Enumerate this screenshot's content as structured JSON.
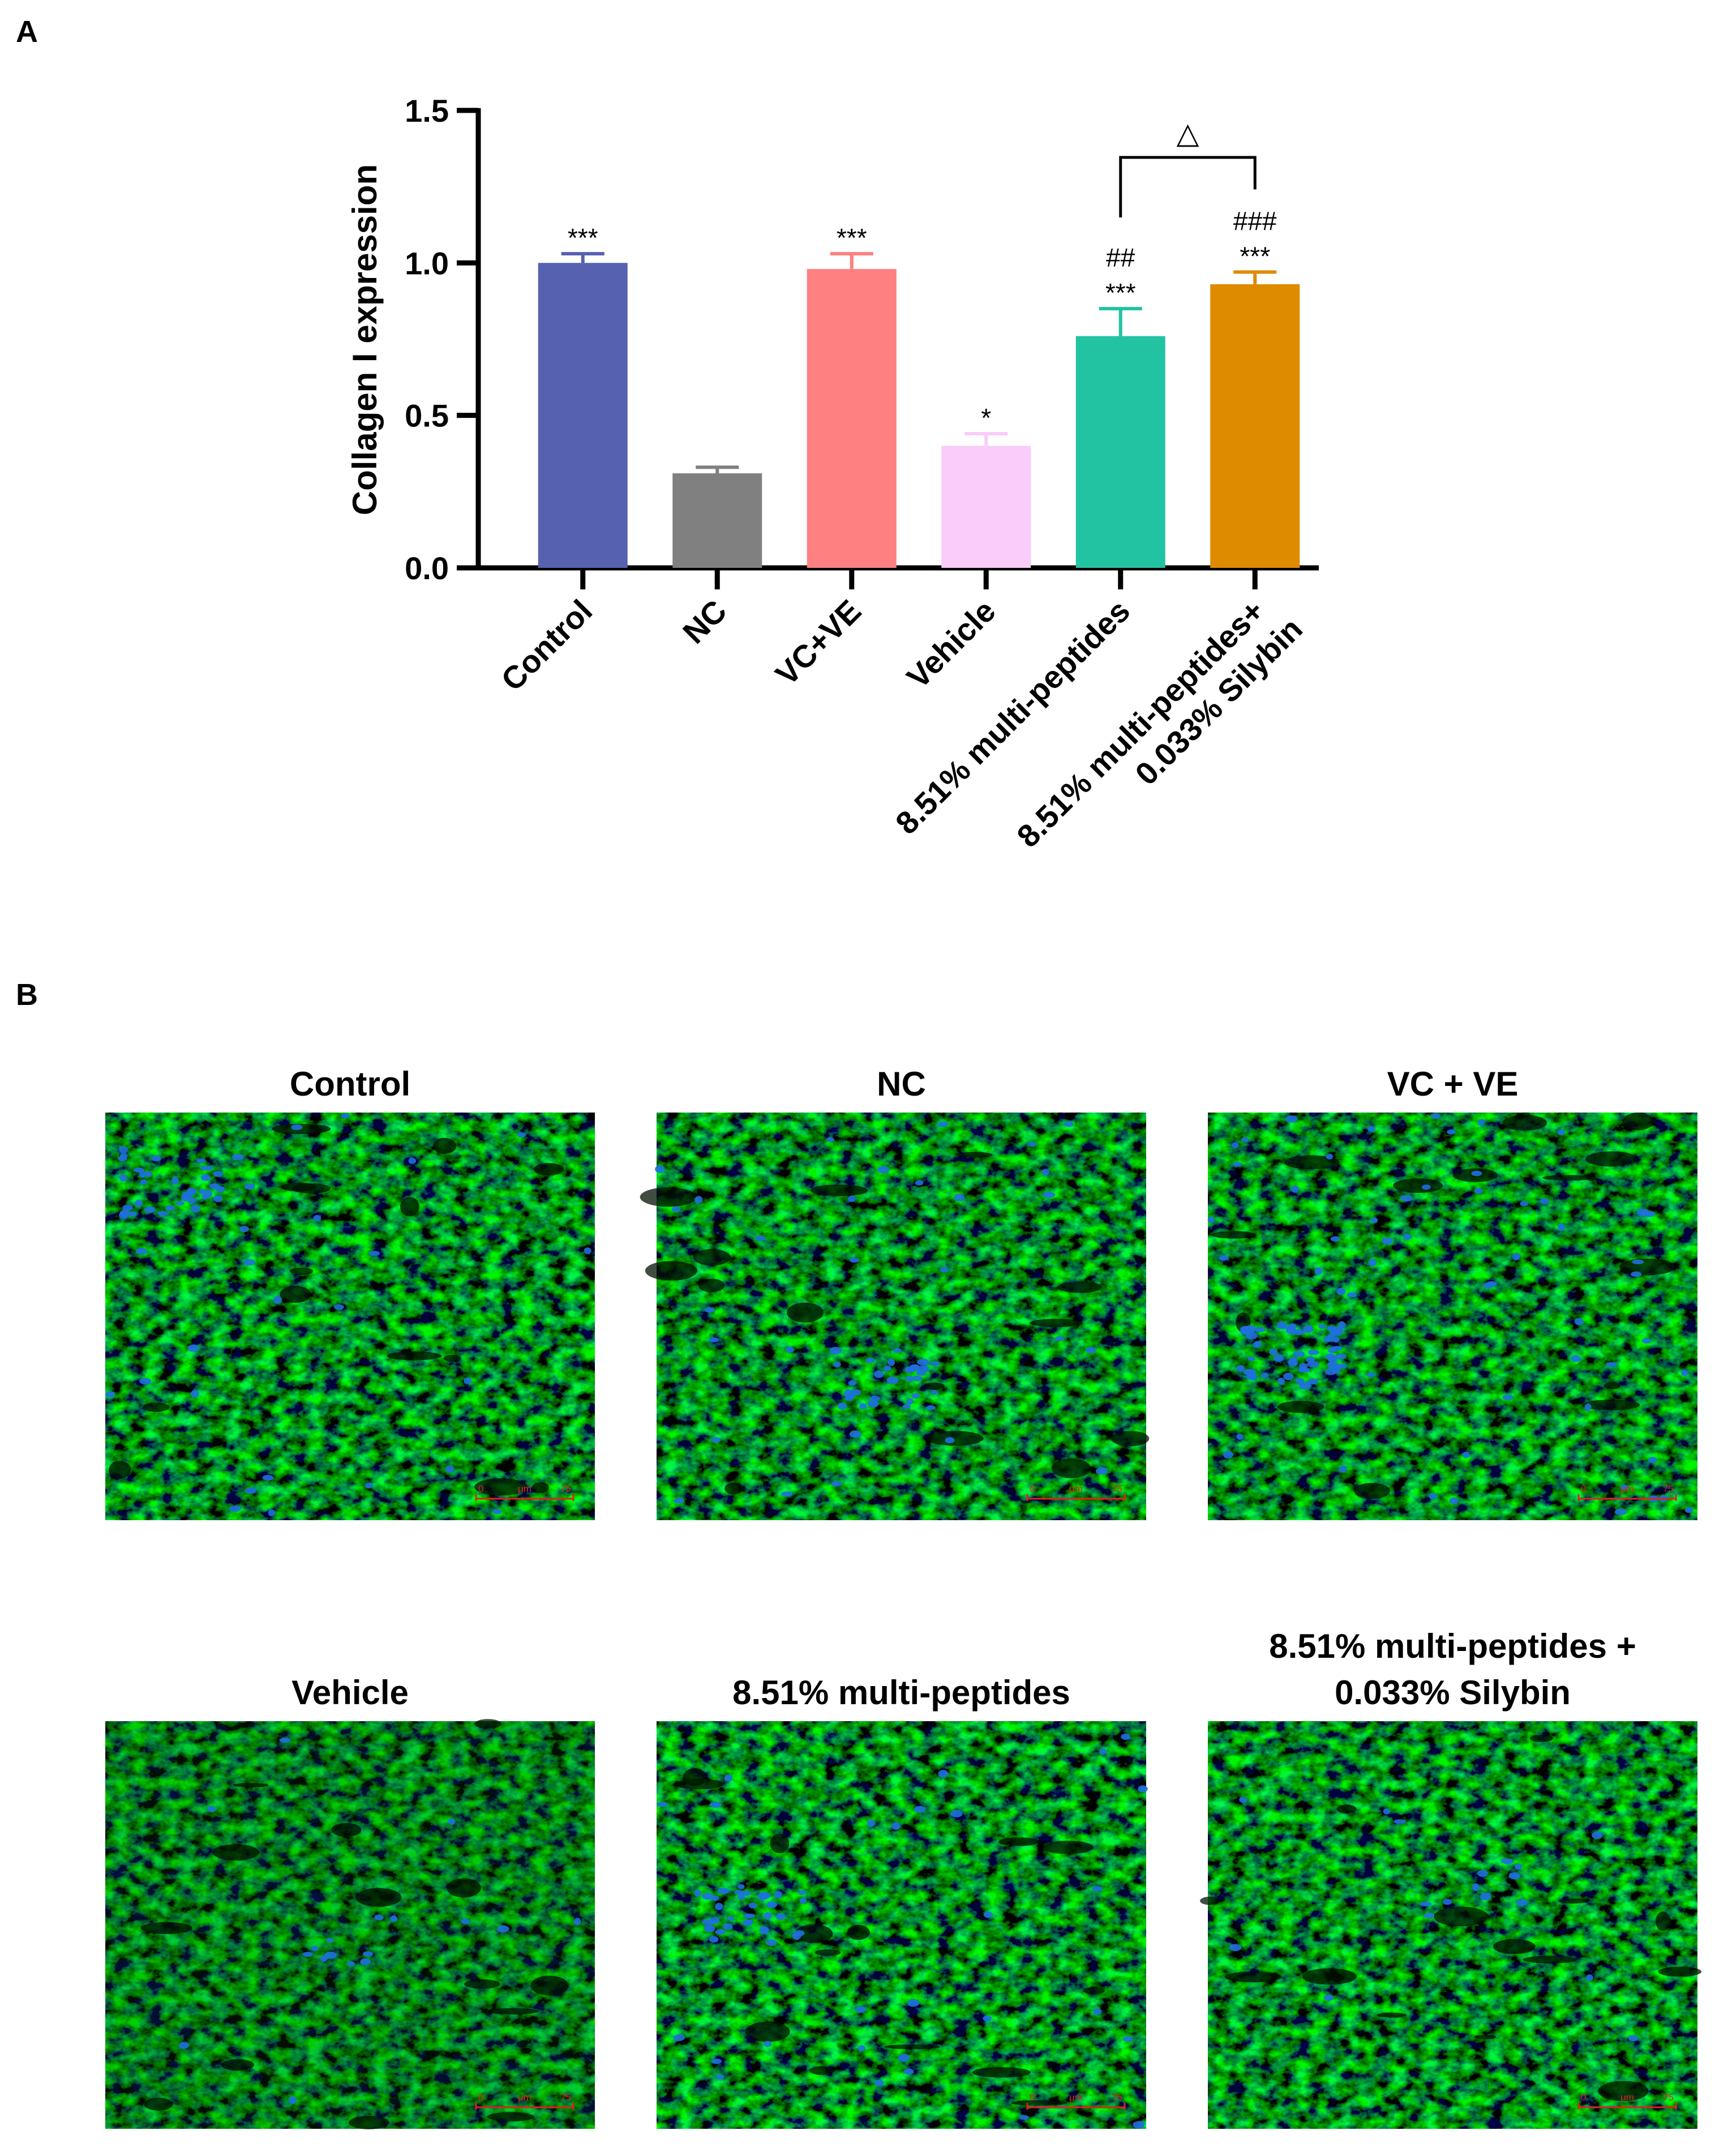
{
  "panel_a": {
    "label": "A"
  },
  "panel_b": {
    "label": "B",
    "images": [
      {
        "title_lines": [
          "Control"
        ],
        "scale_bar": {
          "start": "0",
          "unit": "μm",
          "end": "75"
        },
        "nuclei": "moderate"
      },
      {
        "title_lines": [
          "NC"
        ],
        "scale_bar": {
          "start": "0",
          "unit": "μm",
          "end": "75"
        },
        "nuclei": "moderate"
      },
      {
        "title_lines": [
          "VC + VE"
        ],
        "scale_bar": {
          "start": "0",
          "unit": "μm",
          "end": "75"
        },
        "nuclei": "many"
      },
      {
        "title_lines": [
          "Vehicle"
        ],
        "scale_bar": {
          "start": "0",
          "unit": "μm",
          "end": "75"
        },
        "nuclei": "few"
      },
      {
        "title_lines": [
          "8.51% multi-peptides"
        ],
        "scale_bar": {
          "start": "0",
          "unit": "μm",
          "end": "75"
        },
        "nuclei": "moderate"
      },
      {
        "title_lines": [
          "8.51% multi-peptides +",
          "0.033% Silybin"
        ],
        "scale_bar": {
          "start": "0",
          "unit": "μm",
          "end": "75"
        },
        "nuclei": "few"
      }
    ]
  },
  "chart_data": {
    "type": "bar",
    "ylabel": "Collagen I expression",
    "ylim": [
      0,
      1.5
    ],
    "yticks": [
      0.0,
      0.5,
      1.0,
      1.5
    ],
    "ytick_labels": [
      "0.0",
      "0.5",
      "1.0",
      "1.5"
    ],
    "grid": false,
    "categories": [
      {
        "lines": [
          "Control"
        ]
      },
      {
        "lines": [
          "NC"
        ]
      },
      {
        "lines": [
          "VC+VE"
        ]
      },
      {
        "lines": [
          "Vehicle"
        ]
      },
      {
        "lines": [
          "8.51% multi-peptides"
        ]
      },
      {
        "lines": [
          "8.51% multi-peptides+",
          "0.033% Silybin"
        ]
      }
    ],
    "values": [
      1.0,
      0.31,
      0.98,
      0.4,
      0.76,
      0.93
    ],
    "errors": [
      0.03,
      0.02,
      0.05,
      0.04,
      0.09,
      0.04
    ],
    "colors": [
      "#5661b0",
      "#808080",
      "#fe8080",
      "#f9ccf9",
      "#22c3a2",
      "#de8b00"
    ],
    "annotations": [
      [
        "***"
      ],
      [],
      [
        "***"
      ],
      [
        "*"
      ],
      [
        "##",
        "***"
      ],
      [
        "###",
        "***"
      ]
    ],
    "bracket": {
      "from": 4,
      "to": 5,
      "label": "△"
    }
  }
}
